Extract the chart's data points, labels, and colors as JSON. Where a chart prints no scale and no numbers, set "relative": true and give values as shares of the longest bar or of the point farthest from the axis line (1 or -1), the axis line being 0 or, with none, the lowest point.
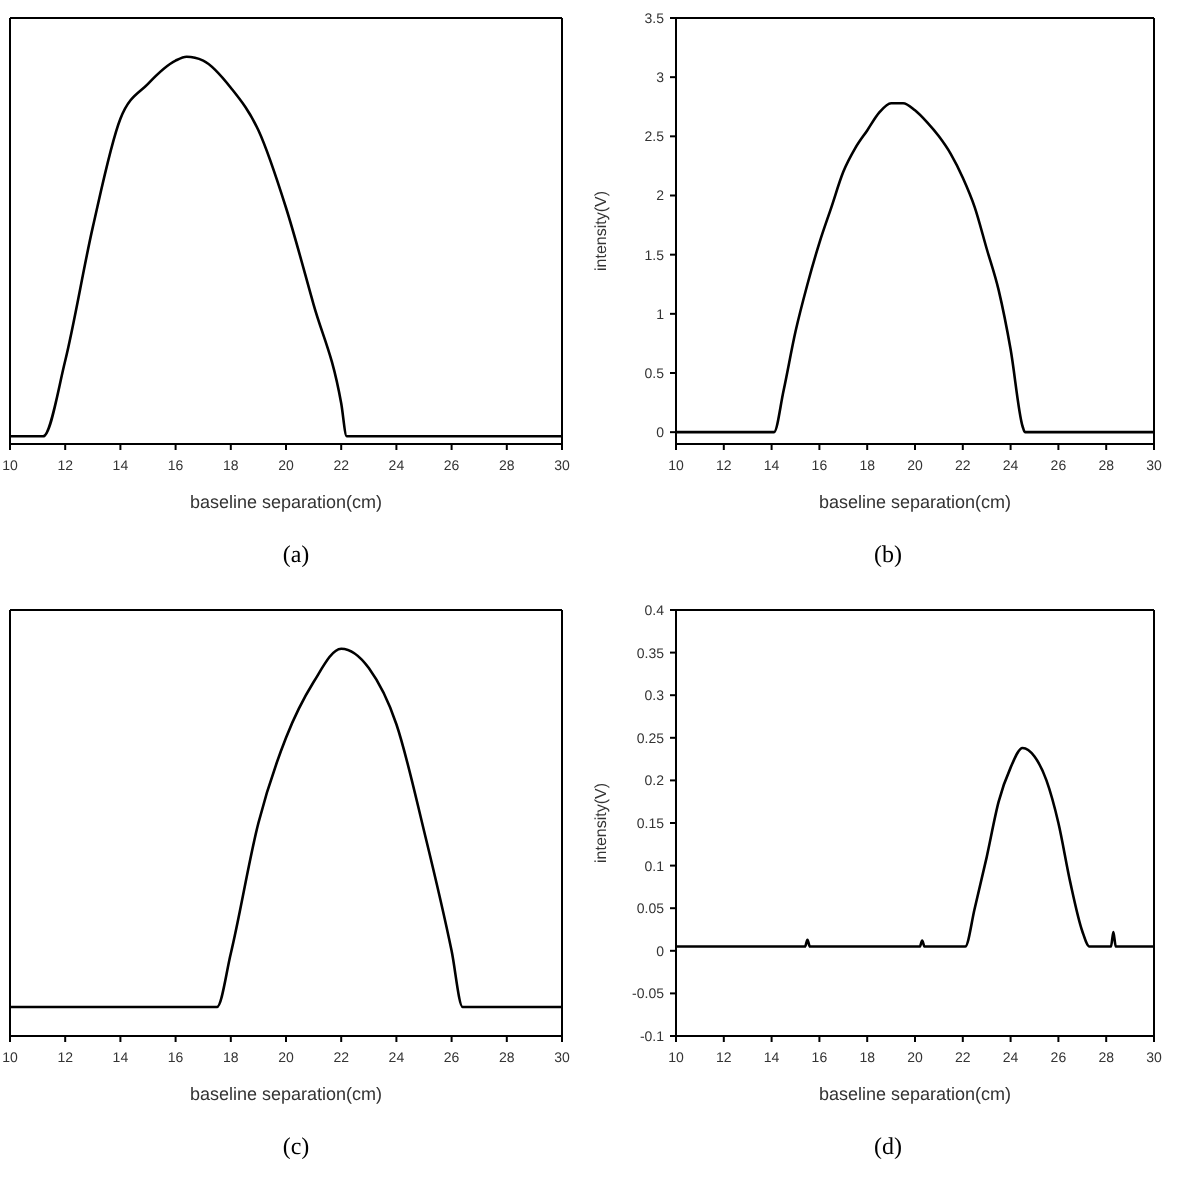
{
  "chart_data": [
    {
      "type": "line",
      "title": "(a)",
      "xlabel": "baseline separation(cm)",
      "relative": true,
      "xlim": [
        10,
        30
      ],
      "xticks": [
        10,
        12,
        14,
        16,
        18,
        20,
        22,
        24,
        26,
        28,
        30
      ],
      "tick_labels": "x",
      "marker": "none",
      "line_style": "solid",
      "series": [
        {
          "color": "#000000",
          "x": [
            10,
            11.2,
            12,
            13,
            14,
            15,
            16,
            16.4,
            17,
            18,
            19,
            20,
            21,
            22,
            22.2,
            30
          ],
          "values": [
            0.02,
            0.02,
            0.215,
            0.56,
            0.84,
            0.93,
            0.99,
            1,
            0.99,
            0.92,
            0.81,
            0.61,
            0.36,
            0.105,
            0.02,
            0.02
          ]
        }
      ]
    },
    {
      "type": "line",
      "title": "(b)",
      "xlabel": "baseline separation(cm)",
      "ylabel": "intensity(V)",
      "xlim": [
        10,
        30
      ],
      "xticks": [
        10,
        12,
        14,
        16,
        18,
        20,
        22,
        24,
        26,
        28,
        30
      ],
      "ylim": [
        -0.1,
        3.5
      ],
      "yticks": [
        0,
        0.5,
        1,
        1.5,
        2,
        2.5,
        3,
        3.5
      ],
      "marker": "none",
      "line_style": "solid",
      "series": [
        {
          "color": "#000000",
          "x": [
            10,
            14.1,
            14.5,
            15,
            15.5,
            16,
            16.5,
            17,
            17.5,
            18,
            18.5,
            19,
            19.5,
            20,
            20.5,
            21,
            21.5,
            22,
            22.5,
            23,
            23.5,
            24,
            24.5,
            24.6,
            30
          ],
          "values": [
            0,
            0,
            0.35,
            0.85,
            1.25,
            1.6,
            1.9,
            2.2,
            2.4,
            2.55,
            2.7,
            2.78,
            2.78,
            2.72,
            2.62,
            2.5,
            2.35,
            2.15,
            1.9,
            1.55,
            1.2,
            0.7,
            0.05,
            0,
            0
          ]
        }
      ]
    },
    {
      "type": "line",
      "title": "(c)",
      "xlabel": "baseline separation(cm)",
      "relative": true,
      "xlim": [
        10,
        30
      ],
      "xticks": [
        10,
        12,
        14,
        16,
        18,
        20,
        22,
        24,
        26,
        28,
        30
      ],
      "tick_labels": "x",
      "marker": "none",
      "line_style": "solid",
      "series": [
        {
          "color": "#000000",
          "x": [
            10,
            17.5,
            18,
            19,
            20,
            21,
            22,
            23,
            24,
            25,
            26,
            26.4,
            30
          ],
          "values": [
            0.075,
            0.075,
            0.213,
            0.55,
            0.77,
            0.914,
            1,
            0.95,
            0.805,
            0.53,
            0.22,
            0.075,
            0.075
          ]
        }
      ]
    },
    {
      "type": "line",
      "title": "(d)",
      "xlabel": "baseline separation(cm)",
      "ylabel": "intensity(V)",
      "xlim": [
        10,
        30
      ],
      "xticks": [
        10,
        12,
        14,
        16,
        18,
        20,
        22,
        24,
        26,
        28,
        30
      ],
      "ylim": [
        -0.1,
        0.4
      ],
      "yticks": [
        -0.1,
        -0.05,
        0,
        0.05,
        0.1,
        0.15,
        0.2,
        0.25,
        0.3,
        0.35,
        0.4
      ],
      "marker": "none",
      "line_style": "solid",
      "series": [
        {
          "color": "#000000",
          "x": [
            10,
            15.4,
            15.5,
            15.6,
            20.2,
            20.3,
            20.4,
            22.1,
            22.5,
            23,
            23.5,
            24,
            24.5,
            25,
            25.5,
            26,
            26.5,
            27,
            27.3,
            28.2,
            28.3,
            28.4,
            30
          ],
          "values": [
            0.005,
            0.005,
            0.013,
            0.005,
            0.005,
            0.012,
            0.005,
            0.005,
            0.05,
            0.11,
            0.175,
            0.215,
            0.238,
            0.228,
            0.2,
            0.15,
            0.08,
            0.023,
            0.005,
            0.005,
            0.022,
            0.005,
            0.005
          ]
        }
      ]
    }
  ]
}
